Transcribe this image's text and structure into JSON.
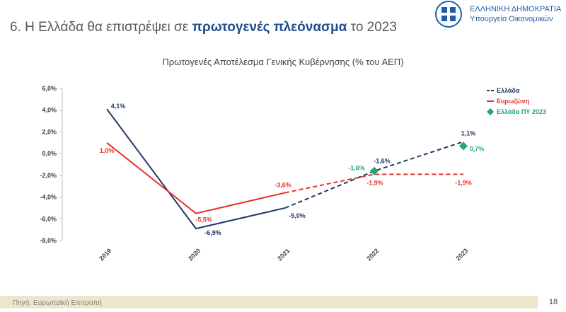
{
  "header": {
    "title_parts": [
      "6. Η Ελλάδα θα επιστρέψει σε ",
      "πρωτογενές πλεόνασμα",
      " το 2023"
    ],
    "logo_line1": "ΕΛΛΗΝΙΚΗ ΔΗΜΟΚΡΑΤΙΑ",
    "logo_line2": "Υπουργείο Οικονομικών"
  },
  "chart_data": {
    "type": "line",
    "title": "Πρωτογενές Αποτέλεσμα Γενικής Κυβέρνησης (% του ΑΕΠ)",
    "categories": [
      "2019",
      "2020",
      "2021",
      "2022",
      "2023"
    ],
    "dashed_from": 2,
    "series": [
      {
        "name": "Ελλάδα",
        "color": "#1f3864",
        "values": [
          4.1,
          -6.9,
          -5.0,
          -1.6,
          1.1
        ],
        "value_labels": [
          "4,1%",
          "-6,9%",
          "-5,0%",
          "-1,6%",
          "1,1%"
        ]
      },
      {
        "name": "Ευρωζώνη",
        "color": "#e8322a",
        "values": [
          1.0,
          -5.5,
          -3.6,
          -1.9,
          -1.9
        ],
        "value_labels": [
          "1,0%",
          "-5,5%",
          "-3,6%",
          "-1,9%",
          "-1,9%"
        ]
      },
      {
        "name": "Ελλάδα ΠΥ 2023",
        "color": "#1fa774",
        "marker": "diamond",
        "values": [
          null,
          null,
          null,
          -1.6,
          0.7
        ],
        "value_labels": [
          null,
          null,
          null,
          "-1,6%",
          "0,7%"
        ]
      }
    ],
    "ylim": [
      -8,
      6
    ],
    "yticks": [
      {
        "value": -8,
        "label": "-8,0%"
      },
      {
        "value": -6,
        "label": "-6,0%"
      },
      {
        "value": -4,
        "label": "-4,0%"
      },
      {
        "value": -2,
        "label": "-2,0%"
      },
      {
        "value": 0,
        "label": "0,0%"
      },
      {
        "value": 2,
        "label": "2,0%"
      },
      {
        "value": 4,
        "label": "4,0%"
      },
      {
        "value": 6,
        "label": "6,0%"
      }
    ],
    "grid": false,
    "legend": "top-right"
  },
  "footer": {
    "source": "Πηγή: Ευρωπαϊκή Επιτροπή",
    "page": "18"
  }
}
